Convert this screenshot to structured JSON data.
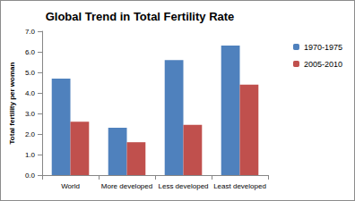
{
  "chart_data": {
    "type": "bar",
    "title": "Global Trend in Total Fertility Rate",
    "y_label": "Total fertility per woman",
    "categories": [
      "World",
      "More developed",
      "Less developed",
      "Least developed"
    ],
    "series": [
      {
        "name": "1970-1975",
        "color": "#4f81bd",
        "values": [
          4.7,
          2.3,
          5.6,
          6.3
        ]
      },
      {
        "name": "2005-2010",
        "color": "#c0504d",
        "values": [
          2.6,
          1.6,
          2.45,
          4.4
        ]
      }
    ],
    "ylim": [
      0,
      7
    ],
    "yticks": [
      {
        "value": 0,
        "label": "0.0"
      },
      {
        "value": 1,
        "label": "1.0"
      },
      {
        "value": 2,
        "label": "2.0"
      },
      {
        "value": 3,
        "label": "3.0"
      },
      {
        "value": 4,
        "label": "4.0"
      },
      {
        "value": 5,
        "label": "5.0"
      },
      {
        "value": 6,
        "label": "6.0"
      },
      {
        "value": 7,
        "label": "7.0"
      }
    ],
    "grid": false,
    "legend": "right"
  }
}
